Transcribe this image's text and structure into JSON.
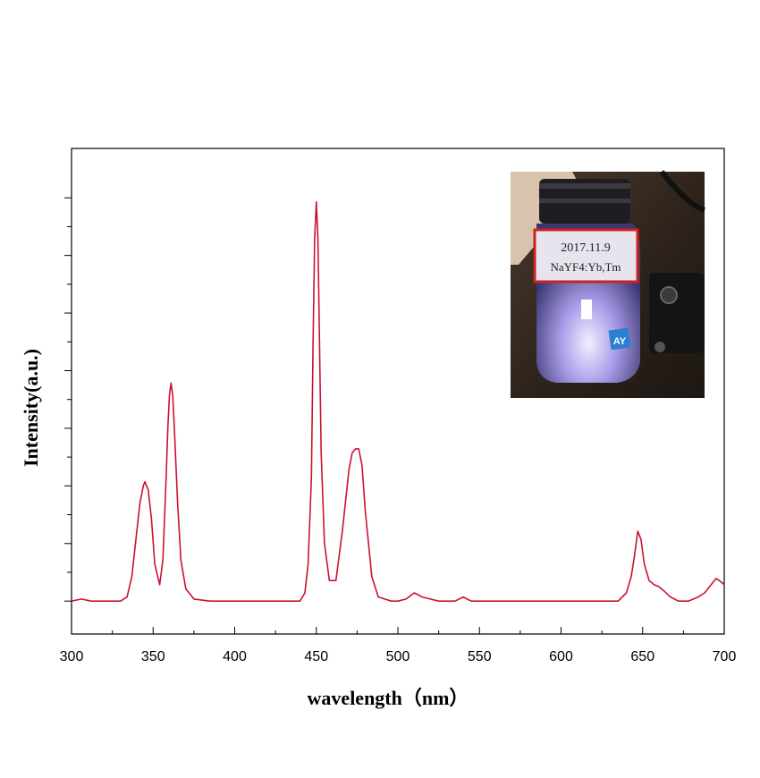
{
  "chart_data": {
    "type": "line",
    "title": "",
    "xlabel": "wavelength（nm）",
    "ylabel": "Intensity(a.u.)",
    "xlim": [
      300,
      700
    ],
    "ylim": [
      -0.08,
      1.1
    ],
    "x_ticks": [
      "300",
      "350",
      "400",
      "450",
      "500",
      "550",
      "600",
      "650",
      "700"
    ],
    "y_tick_labels": "none",
    "grid": false,
    "legend": "none",
    "line_color": "#cc1133",
    "series": [
      {
        "x": [
          300,
          306,
          312,
          318,
          324,
          330,
          334,
          337,
          340,
          342,
          344,
          345,
          347,
          349,
          351,
          354,
          356,
          358,
          359,
          360,
          361,
          362,
          363,
          365,
          367,
          370,
          375,
          385,
          395,
          410,
          425,
          440,
          443,
          445,
          447,
          448,
          449,
          450,
          451,
          452,
          453,
          455,
          458,
          462,
          466,
          470,
          472,
          474,
          476,
          478,
          480,
          484,
          488,
          492,
          496,
          500,
          505,
          510,
          515,
          525,
          535,
          540,
          545,
          560,
          580,
          600,
          620,
          635,
          640,
          643,
          645,
          647,
          649,
          651,
          654,
          657,
          660,
          663,
          667,
          672,
          678,
          684,
          688,
          692,
          695,
          697,
          700
        ],
        "y": [
          0.0,
          0.005,
          0.0,
          0.0,
          0.0,
          0.0,
          0.01,
          0.06,
          0.17,
          0.24,
          0.28,
          0.29,
          0.27,
          0.2,
          0.09,
          0.04,
          0.1,
          0.3,
          0.42,
          0.5,
          0.53,
          0.5,
          0.42,
          0.24,
          0.1,
          0.03,
          0.005,
          0.0,
          0.0,
          0.0,
          0.0,
          0.0,
          0.02,
          0.09,
          0.3,
          0.62,
          0.88,
          0.97,
          0.88,
          0.62,
          0.36,
          0.14,
          0.05,
          0.05,
          0.17,
          0.32,
          0.36,
          0.37,
          0.37,
          0.33,
          0.22,
          0.06,
          0.01,
          0.005,
          0.0,
          0.0,
          0.005,
          0.02,
          0.01,
          0.0,
          0.0,
          0.01,
          0.0,
          0.0,
          0.0,
          0.0,
          0.0,
          0.0,
          0.02,
          0.06,
          0.11,
          0.17,
          0.15,
          0.09,
          0.05,
          0.04,
          0.035,
          0.025,
          0.01,
          0.0,
          0.0,
          0.01,
          0.02,
          0.04,
          0.055,
          0.05,
          0.04
        ]
      }
    ]
  },
  "inset": {
    "label_line1": "2017.11.9",
    "label_line2": "NaYF4:Yb,Tm",
    "sticker_text": "AY"
  }
}
